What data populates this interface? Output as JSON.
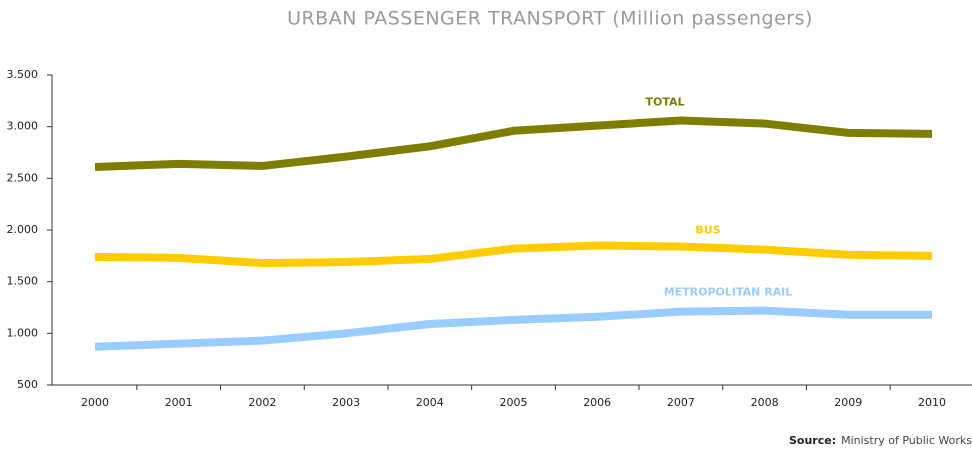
{
  "chart_data": {
    "type": "line",
    "title": "URBAN PASSENGER TRANSPORT (Million passengers)",
    "categories": [
      "2000",
      "2001",
      "2002",
      "2003",
      "2004",
      "2005",
      "2006",
      "2007",
      "2008",
      "2009",
      "2010"
    ],
    "series": [
      {
        "name": "TOTAL",
        "color": "#7d7d00",
        "values": [
          2610,
          2640,
          2620,
          2710,
          2810,
          2960,
          3010,
          3060,
          3030,
          2940,
          2930
        ]
      },
      {
        "name": "BUS",
        "color": "#ffcc00",
        "values": [
          1740,
          1730,
          1680,
          1690,
          1720,
          1820,
          1850,
          1840,
          1810,
          1760,
          1750
        ]
      },
      {
        "name": "METROPOLITAN RAIL",
        "color": "#99ccff",
        "values": [
          870,
          900,
          930,
          1000,
          1090,
          1130,
          1160,
          1210,
          1220,
          1180,
          1180
        ]
      }
    ],
    "ylim": [
      500,
      3500
    ],
    "yticks": [
      500,
      {
        "value": 1000,
        "label": "1.000"
      },
      {
        "value": 1500,
        "label": "1.500"
      },
      {
        "value": 2000,
        "label": "2.000"
      },
      {
        "value": 2500,
        "label": "2.500"
      },
      {
        "value": 3000,
        "label": "3.000"
      },
      {
        "value": 3500,
        "label": "3.500"
      }
    ],
    "grid": false,
    "source_label": "Source:",
    "source": "Ministry of Public Works"
  }
}
